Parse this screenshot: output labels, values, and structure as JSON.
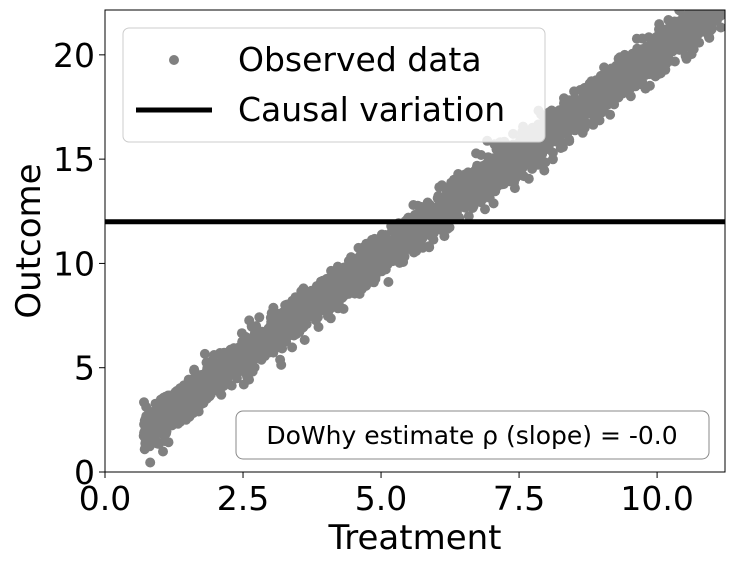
{
  "chart_data": {
    "type": "scatter",
    "title": "",
    "xlabel": "Treatment",
    "ylabel": "Outcome",
    "xlim": [
      0,
      11.23
    ],
    "ylim": [
      0,
      22.15
    ],
    "xticks": [
      0,
      2.5,
      5,
      7.5,
      10
    ],
    "xtick_labels": [
      "0.0",
      "2.5",
      "5.0",
      "7.5",
      "10.0"
    ],
    "yticks": [
      0,
      5,
      10,
      15,
      20
    ],
    "ytick_labels": [
      "0",
      "5",
      "10",
      "15",
      "20"
    ],
    "grid": false,
    "series": [
      {
        "name": "Observed data",
        "kind": "scatter",
        "color": "#808080",
        "trend": {
          "x_range": [
            0.7,
            11.2
          ],
          "slope": 1.95,
          "intercept": 0.6,
          "noise_sd": 0.5,
          "n": 3000
        }
      },
      {
        "name": "Causal variation",
        "kind": "hline",
        "color": "#000000",
        "y": 12
      }
    ],
    "legend": {
      "placement": "top-left",
      "entries": [
        "Observed data",
        "Causal variation"
      ]
    },
    "annotation": {
      "text": "DoWhy estimate ρ (slope) = -0.0",
      "placement": "bottom-right"
    }
  }
}
